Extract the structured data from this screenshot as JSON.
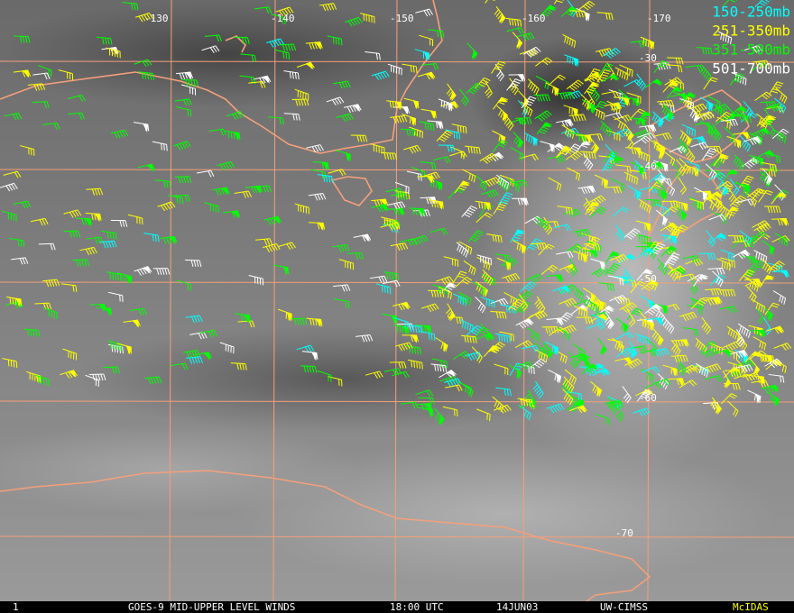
{
  "legend": [
    {
      "label": "150-250mb",
      "color": "#00ffff"
    },
    {
      "label": "251-350mb",
      "color": "#ffff00"
    },
    {
      "label": "351-500mb",
      "color": "#00ff00"
    },
    {
      "label": "501-700mb",
      "color": "#ffffff"
    }
  ],
  "grid": {
    "longitudes": [
      -130,
      -140,
      -150,
      -160,
      -170
    ],
    "latitudes": [
      -30,
      -40,
      -50,
      -60,
      -70
    ],
    "color": "#f4a07a"
  },
  "footer": {
    "frame": "1",
    "title": "GOES-9 MID-UPPER LEVEL WINDS",
    "time": "18:00 UTC",
    "date": "14JUN03",
    "source": "UW-CIMSS",
    "system": "McIDAS"
  }
}
